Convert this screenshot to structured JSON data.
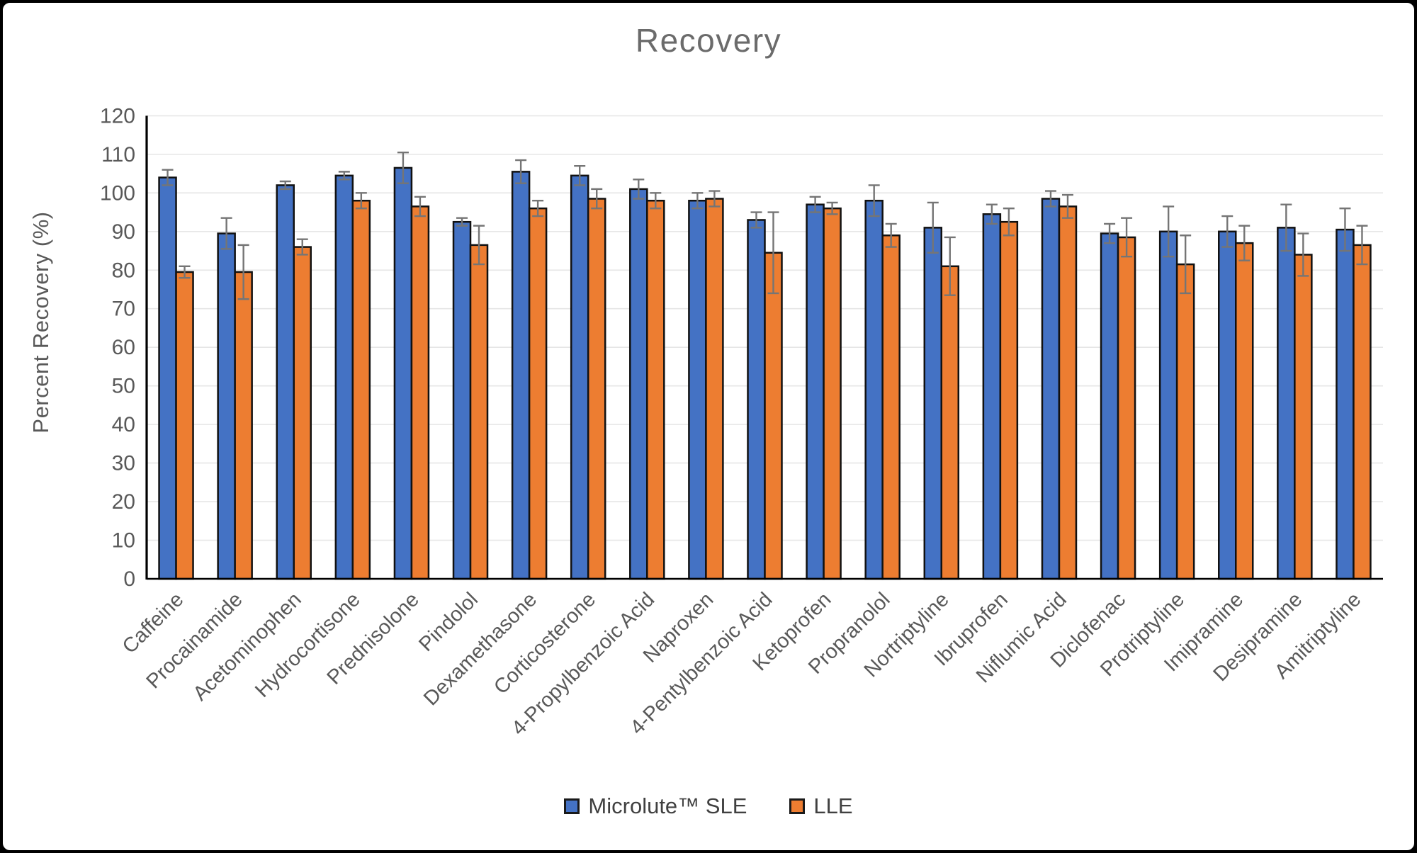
{
  "figure": {
    "title": "Recovery",
    "y_axis_label": "Percent Recovery (%)"
  },
  "legend": [
    {
      "label": "Microlute™ SLE",
      "color": "#4472C4"
    },
    {
      "label": "LLE",
      "color": "#ED7D31"
    }
  ],
  "chart_data": {
    "type": "bar",
    "title": "Recovery",
    "xlabel": "",
    "ylabel": "Percent Recovery (%)",
    "ylim": [
      0,
      120
    ],
    "yticks": [
      0,
      10,
      20,
      30,
      40,
      50,
      60,
      70,
      80,
      90,
      100,
      110,
      120
    ],
    "grid": true,
    "legend_position": "bottom",
    "error_bars": true,
    "categories": [
      "Caffeine",
      "Procainamide",
      "Acetominophen",
      "Hydrocortisone",
      "Prednisolone",
      "Pindolol",
      "Dexamethasone",
      "Corticosterone",
      "4-Propylbenzoic Acid",
      "Naproxen",
      "4-Pentylbenzoic Acid",
      "Ketoprofen",
      "Propranolol",
      "Nortriptyline",
      "Ibruprofen",
      "Niflumic Acid",
      "Diclofenac",
      "Protriptyline",
      "Imipramine",
      "Desipramine",
      "Amitriptyline"
    ],
    "series": [
      {
        "name": "Microlute™ SLE",
        "color": "#4472C4",
        "values": [
          104,
          89.5,
          102,
          104.5,
          106.5,
          92.5,
          105.5,
          104.5,
          101,
          98,
          93,
          97,
          98,
          91,
          94.5,
          98.5,
          89.5,
          90,
          90,
          91,
          90.5
        ],
        "errors": [
          2,
          4,
          1,
          1,
          4,
          1,
          3,
          2.5,
          2.5,
          2,
          2,
          2,
          4,
          6.5,
          2.5,
          2,
          2.5,
          6.5,
          4,
          6,
          5.5
        ]
      },
      {
        "name": "LLE",
        "color": "#ED7D31",
        "values": [
          79.5,
          79.5,
          86,
          98,
          96.5,
          86.5,
          96,
          98.5,
          98,
          98.5,
          84.5,
          96,
          89,
          81,
          92.5,
          96.5,
          88.5,
          81.5,
          87,
          84,
          86.5
        ],
        "errors": [
          1.5,
          7,
          2,
          2,
          2.5,
          5,
          2,
          2.5,
          2,
          2,
          10.5,
          1.5,
          3,
          7.5,
          3.5,
          3,
          5,
          7.5,
          4.5,
          5.5,
          5
        ]
      }
    ],
    "style": {
      "bar_border_color": "#111111",
      "error_bar_color": "#757575",
      "gridline_color": "#E6E6E6",
      "axis_color": "#000000",
      "tick_label_color": "#595959",
      "title_color": "#6b6b6b"
    }
  }
}
